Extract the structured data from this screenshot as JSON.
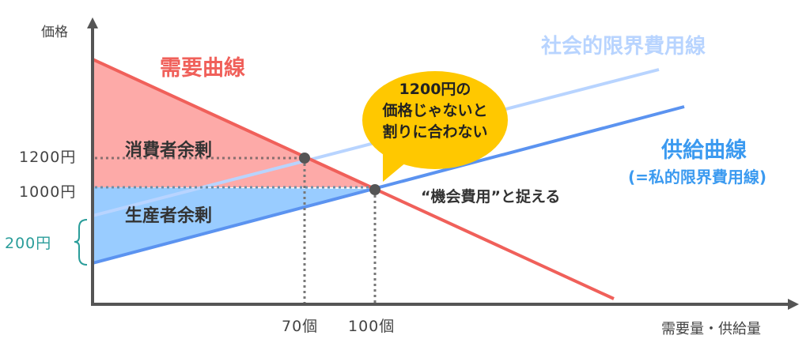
{
  "axes": {
    "y_label": "価格",
    "x_label": "需要量・供給量"
  },
  "prices": {
    "p1200": "1200円",
    "p1000": "1000円",
    "gap": "200円"
  },
  "quantities": {
    "q70": "70個",
    "q100": "100個"
  },
  "curves": {
    "demand": "需要曲線",
    "social_mc": "社会的限界費用線",
    "supply": "供給曲線",
    "supply_note": "(=私的限界費用線)"
  },
  "areas": {
    "consumer_surplus": "消費者余剰",
    "producer_surplus": "生産者余剰"
  },
  "bubble": {
    "line1": "1200円の",
    "line2": "価格じゃないと",
    "line3": "割りに合わない"
  },
  "annotation": "“機会費用”と捉える",
  "colors": {
    "demand": "#f0605a",
    "consumer_fill": "#fdaaa8",
    "producer_fill": "#99ccff",
    "supply": "#5b93f0",
    "social_mc": "#b8d4ff",
    "bubble": "#ffc800",
    "gap_label": "#2a9d9a"
  }
}
